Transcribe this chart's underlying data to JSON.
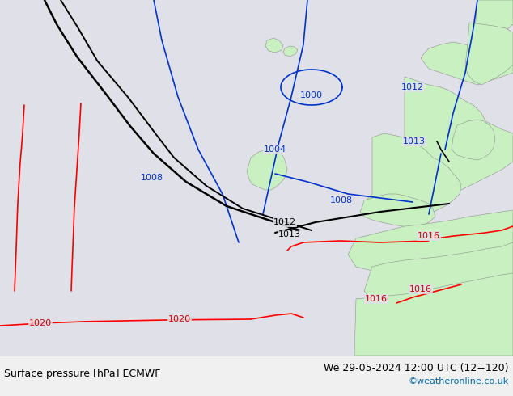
{
  "title_left": "Surface pressure [hPa] ECMWF",
  "title_right": "We 29-05-2024 12:00 UTC (12+120)",
  "copyright": "©weatheronline.co.uk",
  "bg_color": "#e0e0e8",
  "land_color": "#c8f0c0",
  "coast_color": "#909090",
  "text_color_black": "#000000",
  "text_color_blue": "#0033cc",
  "text_color_red": "#cc0000",
  "text_color_cyan": "#0066aa",
  "font_size_labels": 8,
  "font_size_footer": 9,
  "figwidth": 6.34,
  "figheight": 4.9,
  "dpi": 100
}
